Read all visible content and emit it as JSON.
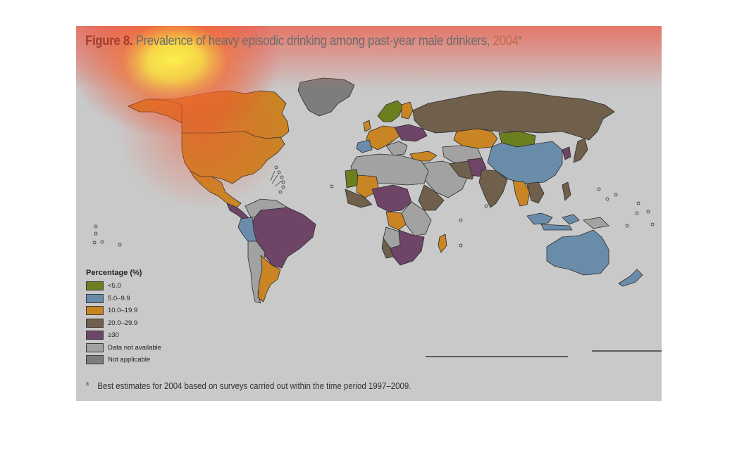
{
  "title": {
    "label": "Figure 8.",
    "text": "Prevalence of heavy episodic drinking among past-year male drinkers,",
    "year": "2004",
    "note_mark": "a"
  },
  "legend": {
    "title": "Percentage (%)",
    "items": [
      {
        "label": "<5.0",
        "color": "#6b7f1e"
      },
      {
        "label": "5.0–9.9",
        "color": "#6a8cab"
      },
      {
        "label": "10.0–19.9",
        "color": "#c98524"
      },
      {
        "label": "20.0–29.9",
        "color": "#6f5f4b"
      },
      {
        "label": "≥30",
        "color": "#6e4467"
      },
      {
        "label": "Data not available",
        "color": "#a2a2a2"
      },
      {
        "label": "Not applicable",
        "color": "#7d7d7d"
      }
    ]
  },
  "footnote": {
    "mark": "a",
    "text": "Best estimates for 2004 based on surveys carried out within the time period 1997–2009."
  }
}
